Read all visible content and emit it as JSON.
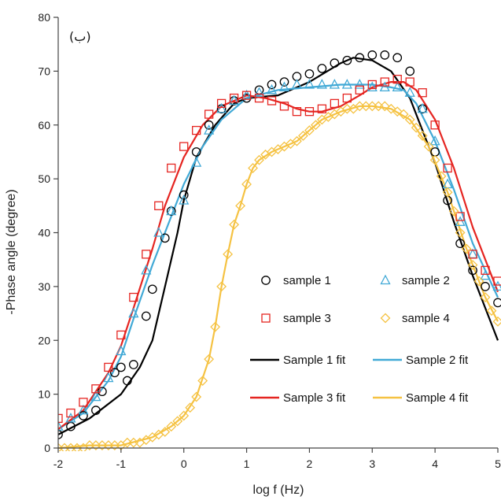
{
  "chart_data": {
    "type": "scatter",
    "panel_label": "(ب)",
    "xlabel": "log f (Hz)",
    "ylabel": "-Phase angle (degree)",
    "xlim": [
      -2,
      5
    ],
    "ylim": [
      0,
      80
    ],
    "x_ticks": [
      "-2",
      "-1",
      "0",
      "1",
      "2",
      "3",
      "4",
      "5"
    ],
    "y_ticks": [
      "0",
      "10",
      "20",
      "30",
      "40",
      "50",
      "60",
      "70",
      "80"
    ],
    "grid": false,
    "legend_position": "center-right",
    "series": [
      {
        "name": "sample 1",
        "kind": "markers",
        "marker": "circle",
        "color": "#000000",
        "x": [
          -2.0,
          -1.8,
          -1.6,
          -1.4,
          -1.3,
          -1.1,
          -1.0,
          -0.9,
          -0.8,
          -0.6,
          -0.5,
          -0.3,
          -0.2,
          0.0,
          0.2,
          0.4,
          0.6,
          0.8,
          1.0,
          1.2,
          1.4,
          1.6,
          1.8,
          2.0,
          2.2,
          2.4,
          2.6,
          2.8,
          3.0,
          3.2,
          3.4,
          3.6,
          3.8,
          4.0,
          4.2,
          4.4,
          4.6,
          4.8,
          5.0
        ],
        "y": [
          2.5,
          4,
          6,
          7,
          10.5,
          14,
          15,
          12.5,
          15.5,
          24.5,
          29.5,
          39,
          44,
          47,
          55,
          60,
          63,
          64.5,
          65,
          66.5,
          67.5,
          68,
          69,
          69.5,
          70.5,
          71.5,
          72,
          72.5,
          73,
          73,
          72.5,
          70,
          63,
          55,
          46,
          38,
          33,
          30,
          27
        ]
      },
      {
        "name": "sample 2",
        "kind": "markers",
        "marker": "triangle",
        "color": "#41a9d6",
        "x": [
          -2.0,
          -1.8,
          -1.6,
          -1.4,
          -1.2,
          -1.0,
          -0.8,
          -0.6,
          -0.4,
          -0.2,
          0.0,
          0.2,
          0.4,
          0.6,
          0.8,
          1.0,
          1.2,
          1.4,
          1.6,
          1.8,
          2.0,
          2.2,
          2.4,
          2.6,
          2.8,
          3.0,
          3.2,
          3.4,
          3.6,
          3.8,
          4.0,
          4.2,
          4.4,
          4.6,
          4.8,
          5.0
        ],
        "y": [
          4,
          5.5,
          7,
          9.5,
          13,
          18,
          25,
          33,
          40,
          44,
          46,
          53,
          59,
          63,
          64.5,
          65.5,
          66,
          66.5,
          67,
          67.5,
          67.5,
          67.5,
          67.5,
          67.5,
          67.5,
          67,
          67,
          67,
          66,
          63,
          57,
          49,
          42,
          36,
          32,
          30
        ]
      },
      {
        "name": "sample 3",
        "kind": "markers",
        "marker": "square",
        "color": "#e52521",
        "x": [
          -2.0,
          -1.8,
          -1.6,
          -1.4,
          -1.2,
          -1.0,
          -0.8,
          -0.6,
          -0.4,
          -0.2,
          0.0,
          0.2,
          0.4,
          0.6,
          0.8,
          1.0,
          1.2,
          1.4,
          1.6,
          1.8,
          2.0,
          2.2,
          2.4,
          2.6,
          2.8,
          3.0,
          3.2,
          3.4,
          3.6,
          3.8,
          4.0,
          4.2,
          4.4,
          4.6,
          4.8,
          5.0
        ],
        "y": [
          5.5,
          6.5,
          8.5,
          11,
          15,
          21,
          28,
          36,
          45,
          52,
          56,
          59,
          62,
          64,
          65,
          65.5,
          65,
          64.5,
          63.5,
          62.5,
          62.5,
          63,
          64,
          65,
          66.5,
          67.5,
          68,
          68.5,
          68,
          66,
          60,
          52,
          43,
          36,
          33,
          31
        ]
      },
      {
        "name": "sample 4",
        "kind": "markers",
        "marker": "diamond",
        "color": "#f5c242",
        "x": [
          -2.0,
          -1.9,
          -1.8,
          -1.7,
          -1.6,
          -1.5,
          -1.4,
          -1.3,
          -1.2,
          -1.1,
          -1.0,
          -0.9,
          -0.8,
          -0.7,
          -0.6,
          -0.5,
          -0.4,
          -0.3,
          -0.2,
          -0.1,
          0.0,
          0.1,
          0.2,
          0.3,
          0.4,
          0.5,
          0.6,
          0.7,
          0.8,
          0.9,
          1.0,
          1.1,
          1.2,
          1.3,
          1.4,
          1.5,
          1.6,
          1.7,
          1.8,
          1.9,
          2.0,
          2.1,
          2.2,
          2.3,
          2.4,
          2.5,
          2.6,
          2.7,
          2.8,
          2.9,
          3.0,
          3.1,
          3.2,
          3.3,
          3.4,
          3.5,
          3.6,
          3.7,
          3.8,
          3.9,
          4.0,
          4.1,
          4.2,
          4.3,
          4.4,
          4.5,
          4.6,
          4.7,
          4.8,
          4.9,
          5.0
        ],
        "y": [
          0,
          0,
          0,
          0,
          0,
          0.5,
          0.5,
          0.5,
          0.5,
          0.5,
          0.5,
          1,
          1,
          1,
          1.5,
          2,
          2.5,
          3,
          4,
          5,
          6,
          7.5,
          9.5,
          12.5,
          16.5,
          22.5,
          30,
          36,
          41.5,
          45,
          49,
          52,
          53.5,
          54.5,
          55,
          55.5,
          56,
          56.5,
          57,
          58,
          59,
          60,
          61,
          61.5,
          62,
          62.5,
          63,
          63,
          63.5,
          63.5,
          63.5,
          63.5,
          63.5,
          63,
          62.5,
          62,
          61,
          59.5,
          58,
          56,
          53.5,
          50.5,
          47.5,
          44,
          40,
          37,
          34,
          31,
          28,
          25.5,
          23.5
        ]
      },
      {
        "name": "Sample 1 fit",
        "kind": "line",
        "color": "#000000",
        "x": [
          -2.0,
          -1.5,
          -1.0,
          -0.7,
          -0.5,
          -0.3,
          -0.1,
          0.0,
          0.2,
          0.5,
          0.8,
          1.0,
          1.5,
          2.0,
          2.5,
          2.7,
          3.0,
          3.3,
          3.6,
          4.0,
          4.3,
          4.6,
          5.0
        ],
        "y": [
          2.5,
          5.5,
          10,
          15,
          20,
          30,
          40,
          46,
          54,
          60,
          64,
          65,
          65.5,
          68,
          71.5,
          72.5,
          72,
          70,
          65,
          53,
          42,
          32,
          20
        ]
      },
      {
        "name": "Sample 2 fit",
        "kind": "line",
        "color": "#41a9d6",
        "x": [
          -2.0,
          -1.6,
          -1.2,
          -1.0,
          -0.8,
          -0.5,
          -0.2,
          0.0,
          0.3,
          0.6,
          0.9,
          1.0,
          1.5,
          2.0,
          2.5,
          3.0,
          3.3,
          3.5,
          3.7,
          4.0,
          4.3,
          4.6,
          5.0
        ],
        "y": [
          3.5,
          6.5,
          12.5,
          17,
          24,
          34,
          43,
          49,
          56,
          61,
          64,
          65,
          66.5,
          67,
          67.5,
          67.5,
          67,
          66.5,
          64,
          57,
          48,
          38,
          28
        ]
      },
      {
        "name": "Sample 3 fit",
        "kind": "line",
        "color": "#e52521",
        "x": [
          -2.0,
          -1.6,
          -1.2,
          -1.0,
          -0.8,
          -0.5,
          -0.3,
          0.0,
          0.3,
          0.6,
          0.9,
          1.0,
          1.3,
          1.6,
          1.8,
          2.0,
          2.2,
          2.5,
          2.8,
          3.0,
          3.3,
          3.5,
          3.7,
          4.0,
          4.3,
          4.6,
          5.0
        ],
        "y": [
          3.5,
          7,
          14,
          19,
          26,
          37,
          45,
          54,
          60,
          63.5,
          65,
          65.5,
          65,
          64,
          63,
          62.5,
          62.5,
          63.5,
          65.5,
          67,
          68,
          68,
          66.5,
          61,
          52,
          41,
          29
        ]
      },
      {
        "name": "Sample 4 fit",
        "kind": "line",
        "color": "#f5c242",
        "x": [
          -2.0,
          -1.5,
          -1.0,
          -0.5,
          -0.2,
          0.0,
          0.2,
          0.4,
          0.5,
          0.6,
          0.7,
          0.8,
          0.9,
          1.0,
          1.1,
          1.2,
          1.4,
          1.6,
          1.8,
          2.0,
          2.2,
          2.5,
          2.8,
          3.0,
          3.3,
          3.6,
          3.9,
          4.2,
          4.5,
          4.8,
          5.0
        ],
        "y": [
          0,
          0.5,
          0.5,
          2,
          4,
          6,
          9.5,
          16.5,
          22.5,
          30,
          36,
          41.5,
          45,
          49,
          52,
          53.5,
          55,
          56,
          57,
          59,
          61,
          62.5,
          63.5,
          63.5,
          63,
          61,
          56,
          47.5,
          37,
          28,
          23.5
        ]
      }
    ]
  }
}
